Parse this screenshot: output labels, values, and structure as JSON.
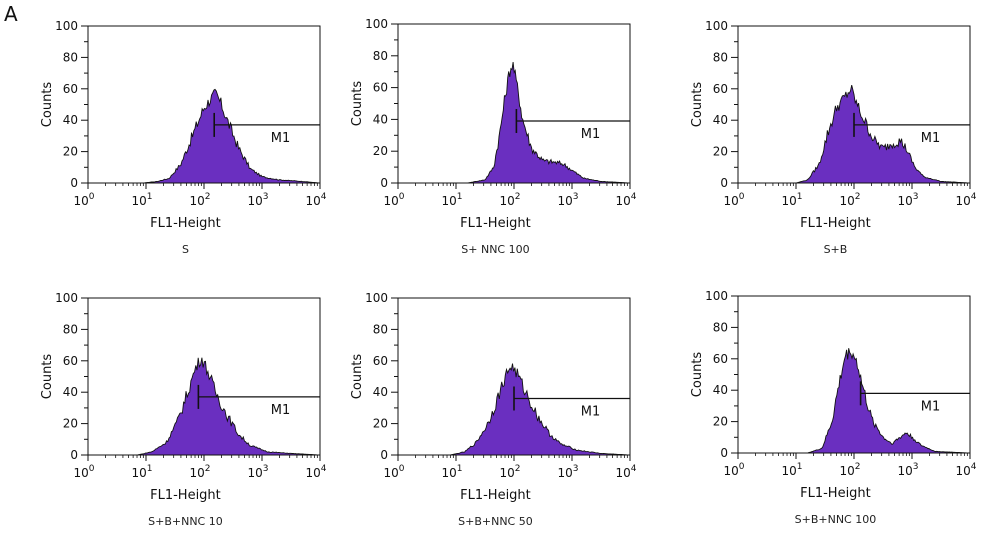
{
  "figure": {
    "panel_label": "A"
  },
  "colors": {
    "fill": "#6a2fc0",
    "outline": "#111111",
    "axis": "#111111"
  },
  "chart_data": [
    {
      "type": "histogram",
      "caption": "S",
      "xlabel": "FL1-Height",
      "ylabel": "Counts",
      "xscale": "log",
      "xlim": [
        1,
        10000
      ],
      "ylim": [
        0,
        100
      ],
      "yticks": [
        0,
        20,
        40,
        60,
        80,
        100
      ],
      "xticks": [
        {
          "base": "10",
          "exp": "0"
        },
        {
          "base": "10",
          "exp": "1"
        },
        {
          "base": "10",
          "exp": "2"
        },
        {
          "base": "10",
          "exp": "3"
        },
        {
          "base": "10",
          "exp": "4"
        }
      ],
      "gate": {
        "label": "M1",
        "start": 150,
        "end": 10000,
        "level": 37
      },
      "histogram": {
        "x_log10": [
          0.95,
          1.2,
          1.4,
          1.6,
          1.8,
          2.0,
          2.1,
          2.2,
          2.3,
          2.4,
          2.6,
          2.8,
          3.0,
          3.3,
          3.7,
          4.0
        ],
        "counts": [
          0,
          1,
          3,
          12,
          30,
          48,
          53,
          57,
          50,
          40,
          22,
          9,
          4,
          2,
          1,
          0
        ]
      }
    },
    {
      "type": "histogram",
      "caption": "S+ NNC 100",
      "xlabel": "FL1-Height",
      "ylabel": "Counts",
      "xscale": "log",
      "xlim": [
        1,
        10000
      ],
      "ylim": [
        0,
        100
      ],
      "yticks": [
        0,
        20,
        40,
        60,
        80,
        100
      ],
      "xticks": [
        {
          "base": "10",
          "exp": "0"
        },
        {
          "base": "10",
          "exp": "1"
        },
        {
          "base": "10",
          "exp": "2"
        },
        {
          "base": "10",
          "exp": "3"
        },
        {
          "base": "10",
          "exp": "4"
        }
      ],
      "gate": {
        "label": "M1",
        "start": 110,
        "end": 10000,
        "level": 39
      },
      "histogram": {
        "x_log10": [
          1.2,
          1.5,
          1.65,
          1.75,
          1.85,
          1.92,
          1.98,
          2.05,
          2.15,
          2.3,
          2.5,
          2.7,
          2.85,
          3.0,
          3.2,
          3.5,
          4.0
        ],
        "counts": [
          0,
          2,
          10,
          30,
          55,
          70,
          75,
          62,
          40,
          22,
          14,
          13,
          12,
          8,
          3,
          1,
          0
        ]
      }
    },
    {
      "type": "histogram",
      "caption": "S+B",
      "xlabel": "FL1-Height",
      "ylabel": "Counts",
      "xscale": "log",
      "xlim": [
        1,
        10000
      ],
      "ylim": [
        0,
        100
      ],
      "yticks": [
        0,
        20,
        40,
        60,
        80,
        100
      ],
      "xticks": [
        {
          "base": "10",
          "exp": "0"
        },
        {
          "base": "10",
          "exp": "1"
        },
        {
          "base": "10",
          "exp": "2"
        },
        {
          "base": "10",
          "exp": "3"
        },
        {
          "base": "10",
          "exp": "4"
        }
      ],
      "gate": {
        "label": "M1",
        "start": 100,
        "end": 10000,
        "level": 37
      },
      "histogram": {
        "x_log10": [
          1.0,
          1.2,
          1.4,
          1.55,
          1.7,
          1.85,
          1.95,
          2.05,
          2.2,
          2.35,
          2.5,
          2.65,
          2.8,
          2.9,
          3.05,
          3.2,
          3.5,
          4.0
        ],
        "counts": [
          0,
          2,
          12,
          32,
          48,
          55,
          60,
          50,
          38,
          27,
          22,
          25,
          27,
          22,
          10,
          4,
          1,
          0
        ]
      }
    },
    {
      "type": "histogram",
      "caption": "S+B+NNC 10",
      "xlabel": "FL1-Height",
      "ylabel": "Counts",
      "xscale": "log",
      "xlim": [
        1,
        10000
      ],
      "ylim": [
        0,
        100
      ],
      "yticks": [
        0,
        20,
        40,
        60,
        80,
        100
      ],
      "xticks": [
        {
          "base": "10",
          "exp": "0"
        },
        {
          "base": "10",
          "exp": "1"
        },
        {
          "base": "10",
          "exp": "2"
        },
        {
          "base": "10",
          "exp": "3"
        },
        {
          "base": "10",
          "exp": "4"
        }
      ],
      "gate": {
        "label": "M1",
        "start": 80,
        "end": 10000,
        "level": 37
      },
      "histogram": {
        "x_log10": [
          0.85,
          1.1,
          1.35,
          1.55,
          1.72,
          1.85,
          1.95,
          2.05,
          2.2,
          2.4,
          2.6,
          2.8,
          3.1,
          3.5,
          4.0
        ],
        "counts": [
          0,
          2,
          8,
          22,
          40,
          55,
          62,
          55,
          40,
          25,
          13,
          6,
          2,
          1,
          0
        ]
      }
    },
    {
      "type": "histogram",
      "caption": "S+B+NNC 50",
      "xlabel": "FL1-Height",
      "ylabel": "Counts",
      "xscale": "log",
      "xlim": [
        1,
        10000
      ],
      "ylim": [
        0,
        100
      ],
      "yticks": [
        0,
        20,
        40,
        60,
        80,
        100
      ],
      "xticks": [
        {
          "base": "10",
          "exp": "0"
        },
        {
          "base": "10",
          "exp": "1"
        },
        {
          "base": "10",
          "exp": "2"
        },
        {
          "base": "10",
          "exp": "3"
        },
        {
          "base": "10",
          "exp": "4"
        }
      ],
      "gate": {
        "label": "M1",
        "start": 100,
        "end": 10000,
        "level": 36
      },
      "histogram": {
        "x_log10": [
          0.9,
          1.15,
          1.35,
          1.55,
          1.72,
          1.85,
          1.95,
          2.05,
          2.2,
          2.4,
          2.6,
          2.8,
          3.1,
          3.5,
          4.0
        ],
        "counts": [
          0,
          2,
          8,
          20,
          36,
          50,
          57,
          52,
          40,
          25,
          14,
          7,
          3,
          1,
          0
        ]
      }
    },
    {
      "type": "histogram",
      "caption": "S+B+NNC 100",
      "xlabel": "FL1-Height",
      "ylabel": "Counts",
      "xscale": "log",
      "xlim": [
        1,
        10000
      ],
      "ylim": [
        0,
        100
      ],
      "yticks": [
        0,
        20,
        40,
        60,
        80,
        100
      ],
      "xticks": [
        {
          "base": "10",
          "exp": "0"
        },
        {
          "base": "10",
          "exp": "1"
        },
        {
          "base": "10",
          "exp": "2"
        },
        {
          "base": "10",
          "exp": "3"
        },
        {
          "base": "10",
          "exp": "4"
        }
      ],
      "gate": {
        "label": "M1",
        "start": 130,
        "end": 10000,
        "level": 38
      },
      "histogram": {
        "x_log10": [
          1.2,
          1.45,
          1.62,
          1.75,
          1.85,
          1.95,
          2.05,
          2.15,
          2.3,
          2.5,
          2.65,
          2.8,
          2.9,
          3.0,
          3.15,
          3.4,
          4.0
        ],
        "counts": [
          0,
          3,
          20,
          45,
          62,
          65,
          58,
          42,
          22,
          10,
          6,
          10,
          13,
          10,
          5,
          1,
          0
        ]
      }
    }
  ]
}
